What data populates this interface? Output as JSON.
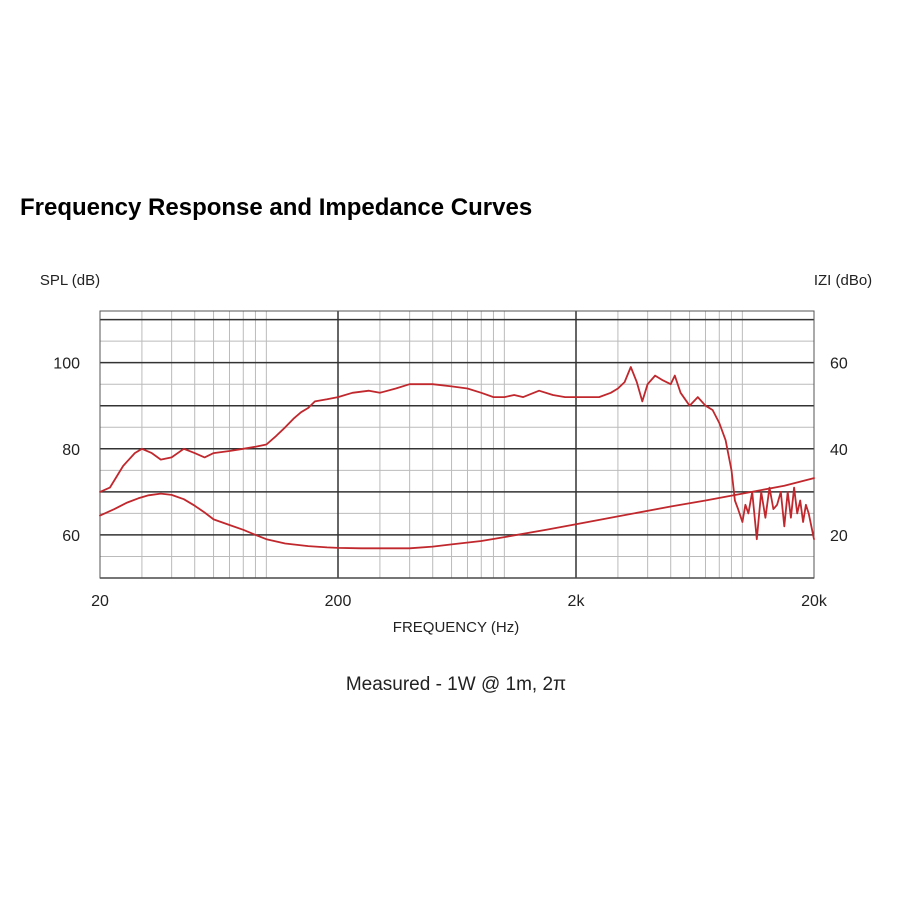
{
  "title": "Frequency Response and Impedance Curves",
  "chart_data": {
    "type": "line",
    "title": "Frequency Response and Impedance Curves",
    "xlabel": "FREQUENCY (Hz)",
    "ylabel_left": "SPL (dB)",
    "ylabel_right": "IZI (dBo)",
    "subtitle": "Measured - 1W @ 1m, 2π",
    "x_scale": "log",
    "xlim": [
      20,
      20000
    ],
    "ylim_left": [
      50,
      112
    ],
    "ylim_right": [
      10,
      72
    ],
    "x_ticks": [
      {
        "value": 20,
        "label": "20"
      },
      {
        "value": 200,
        "label": "200"
      },
      {
        "value": 2000,
        "label": "2k"
      },
      {
        "value": 20000,
        "label": "20k"
      }
    ],
    "y_ticks_left": [
      {
        "value": 60,
        "label": "60"
      },
      {
        "value": 80,
        "label": "80"
      },
      {
        "value": 100,
        "label": "100"
      }
    ],
    "y_ticks_right": [
      {
        "value": 20,
        "label": "20"
      },
      {
        "value": 40,
        "label": "40"
      },
      {
        "value": 60,
        "label": "60"
      }
    ],
    "grid": true,
    "line_color": "#c0282d",
    "series": [
      {
        "axis": "left",
        "x": [
          20,
          22,
          25,
          28,
          30,
          33,
          36,
          40,
          45,
          50,
          55,
          60,
          70,
          80,
          90,
          100,
          110,
          120,
          130,
          140,
          150,
          160,
          180,
          200,
          230,
          270,
          300,
          350,
          400,
          450,
          500,
          600,
          700,
          800,
          900,
          1000,
          1100,
          1200,
          1400,
          1600,
          1800,
          2000,
          2200,
          2500,
          2800,
          3000,
          3200,
          3400,
          3600,
          3800,
          4000,
          4300,
          4600,
          5000,
          5200,
          5500,
          6000,
          6500,
          7000,
          7500,
          8000,
          8500,
          9000,
          9300,
          9600,
          10000,
          10300,
          10600,
          11000,
          11500,
          12000,
          12500,
          13000,
          13500,
          14000,
          14500,
          15000,
          15500,
          16000,
          16500,
          17000,
          17500,
          18000,
          18500,
          19000,
          20000
        ],
        "y": [
          70,
          71,
          76,
          79,
          80,
          79,
          77.5,
          78,
          80,
          79,
          78,
          79,
          79.5,
          80,
          80.5,
          81,
          83,
          85,
          87,
          88.5,
          89.5,
          91,
          91.5,
          92,
          93,
          93.5,
          93,
          94,
          95,
          95,
          95,
          94.5,
          94,
          93,
          92,
          92,
          92.5,
          92,
          93.5,
          92.5,
          92,
          92,
          92,
          92,
          93,
          94,
          95.5,
          99,
          95.5,
          91,
          95,
          97,
          96,
          95,
          97,
          93,
          90,
          92,
          90,
          89,
          86,
          82,
          75,
          68,
          66,
          63,
          67,
          65,
          70,
          59,
          70,
          64,
          71,
          66,
          67,
          70,
          62,
          70,
          64,
          71,
          65,
          68,
          63,
          67,
          65,
          59
        ]
      },
      {
        "axis": "right",
        "x": [
          20,
          23,
          26,
          29,
          32,
          36,
          40,
          45,
          50,
          55,
          60,
          70,
          80,
          90,
          100,
          120,
          150,
          180,
          200,
          250,
          300,
          400,
          500,
          600,
          800,
          1000,
          1500,
          2000,
          3000,
          5000,
          7000,
          10000,
          15000,
          20000
        ],
        "y": [
          24.5,
          26,
          27.5,
          28.5,
          29.2,
          29.6,
          29.3,
          28.3,
          26.8,
          25.2,
          23.6,
          22.3,
          21.2,
          20,
          19,
          18,
          17.4,
          17.1,
          17,
          16.9,
          16.9,
          16.9,
          17.3,
          17.8,
          18.6,
          19.5,
          21.2,
          22.5,
          24.3,
          26.6,
          28,
          29.6,
          31.4,
          33.2
        ]
      }
    ]
  }
}
